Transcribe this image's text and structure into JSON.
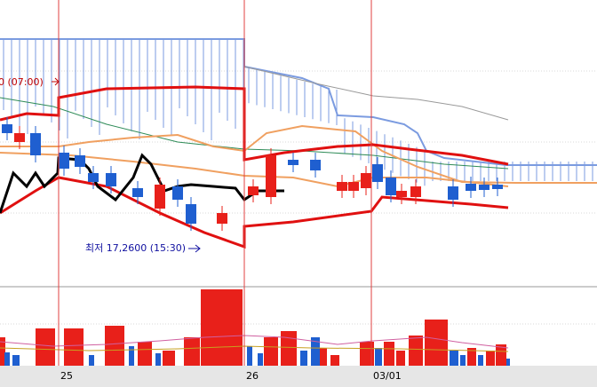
{
  "labels": {
    "high_marker": "0 (07:00)",
    "low_marker": "최저 17,2600 (15:30)"
  },
  "x_axis": {
    "labels": [
      "25",
      "26",
      "03/01"
    ]
  }
}
